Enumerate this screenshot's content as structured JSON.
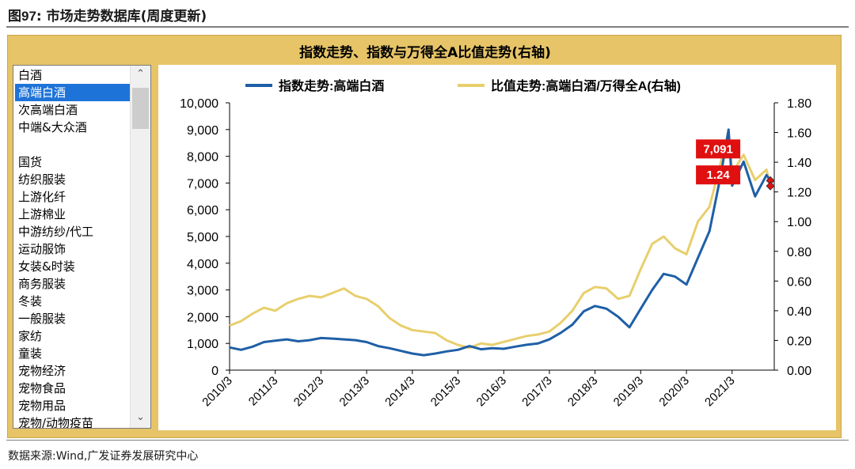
{
  "figure": {
    "title_prefix": "图",
    "title_number": "97",
    "title_text": ":  市场走势数据库(周度更新)",
    "source": "数据来源:Wind,广发证券发展研究中心"
  },
  "panel_title": "指数走势、指数与万得全A比值走势(右轴)",
  "listbox": {
    "items": [
      "白酒",
      "高端白酒",
      "次高端白酒",
      "中端&大众酒",
      "",
      "国货",
      "纺织服装",
      "上游化纤",
      "上游棉业",
      "中游纺纱/代工",
      "运动服饰",
      "女装&时装",
      "商务服装",
      "冬装",
      "一般服装",
      "家纺",
      "童装",
      "宠物经济",
      "宠物食品",
      "宠物用品",
      "宠物/动物疫苗"
    ],
    "selected_index": 1,
    "scroll_up": "⌃",
    "scroll_down": "⌄"
  },
  "colors": {
    "panel_bg": "#e6c467",
    "index_line": "#1f5fa6",
    "ratio_line": "#e8cf6d",
    "label_bg": "#e01010",
    "selected_bg": "#1e73d8"
  },
  "chart_data": {
    "type": "line",
    "x_ticks": [
      "2010/3",
      "2011/3",
      "2012/3",
      "2013/3",
      "2014/3",
      "2015/3",
      "2016/3",
      "2017/3",
      "2018/3",
      "2019/3",
      "2020/3",
      "2021/3"
    ],
    "y_left": {
      "min": 0,
      "max": 10000,
      "ticks": [
        "0",
        "1,000",
        "2,000",
        "3,000",
        "4,000",
        "5,000",
        "6,000",
        "7,000",
        "8,000",
        "9,000",
        "10,000"
      ]
    },
    "y_right": {
      "min": 0,
      "max": 1.8,
      "ticks": [
        "0.00",
        "0.20",
        "0.40",
        "0.60",
        "0.80",
        "1.00",
        "1.20",
        "1.40",
        "1.60",
        "1.80"
      ]
    },
    "legend_position": "top",
    "series": [
      {
        "name": "指数走势:高端白酒",
        "axis": "left",
        "points": [
          [
            "2010-03",
            850
          ],
          [
            "2010-06",
            760
          ],
          [
            "2010-09",
            880
          ],
          [
            "2010-12",
            1050
          ],
          [
            "2011-03",
            1100
          ],
          [
            "2011-06",
            1150
          ],
          [
            "2011-09",
            1080
          ],
          [
            "2011-12",
            1120
          ],
          [
            "2012-03",
            1200
          ],
          [
            "2012-06",
            1180
          ],
          [
            "2012-09",
            1150
          ],
          [
            "2012-12",
            1120
          ],
          [
            "2013-03",
            1050
          ],
          [
            "2013-06",
            900
          ],
          [
            "2013-09",
            820
          ],
          [
            "2013-12",
            720
          ],
          [
            "2014-03",
            620
          ],
          [
            "2014-06",
            560
          ],
          [
            "2014-09",
            620
          ],
          [
            "2014-12",
            700
          ],
          [
            "2015-03",
            760
          ],
          [
            "2015-06",
            900
          ],
          [
            "2015-09",
            780
          ],
          [
            "2015-12",
            820
          ],
          [
            "2016-03",
            800
          ],
          [
            "2016-06",
            880
          ],
          [
            "2016-09",
            950
          ],
          [
            "2016-12",
            1000
          ],
          [
            "2017-03",
            1150
          ],
          [
            "2017-06",
            1400
          ],
          [
            "2017-09",
            1700
          ],
          [
            "2017-12",
            2200
          ],
          [
            "2018-03",
            2400
          ],
          [
            "2018-06",
            2300
          ],
          [
            "2018-09",
            2000
          ],
          [
            "2018-12",
            1600
          ],
          [
            "2019-03",
            2300
          ],
          [
            "2019-06",
            3000
          ],
          [
            "2019-09",
            3600
          ],
          [
            "2019-12",
            3500
          ],
          [
            "2020-03",
            3200
          ],
          [
            "2020-06",
            4200
          ],
          [
            "2020-09",
            5200
          ],
          [
            "2020-12",
            7300
          ],
          [
            "2021-02",
            9000
          ],
          [
            "2021-03",
            6900
          ],
          [
            "2021-06",
            7800
          ],
          [
            "2021-09",
            6500
          ],
          [
            "2021-12",
            7300
          ],
          [
            "2022-01",
            7091
          ]
        ],
        "end_label": "7,091"
      },
      {
        "name": "比值走势:高端白酒/万得全A(右轴)",
        "axis": "right",
        "points": [
          [
            "2010-03",
            0.3
          ],
          [
            "2010-06",
            0.33
          ],
          [
            "2010-09",
            0.38
          ],
          [
            "2010-12",
            0.42
          ],
          [
            "2011-03",
            0.4
          ],
          [
            "2011-06",
            0.45
          ],
          [
            "2011-09",
            0.48
          ],
          [
            "2011-12",
            0.5
          ],
          [
            "2012-03",
            0.49
          ],
          [
            "2012-06",
            0.52
          ],
          [
            "2012-09",
            0.55
          ],
          [
            "2012-12",
            0.5
          ],
          [
            "2013-03",
            0.48
          ],
          [
            "2013-06",
            0.43
          ],
          [
            "2013-09",
            0.35
          ],
          [
            "2013-12",
            0.3
          ],
          [
            "2014-03",
            0.27
          ],
          [
            "2014-06",
            0.26
          ],
          [
            "2014-09",
            0.25
          ],
          [
            "2014-12",
            0.2
          ],
          [
            "2015-03",
            0.17
          ],
          [
            "2015-06",
            0.15
          ],
          [
            "2015-09",
            0.18
          ],
          [
            "2015-12",
            0.17
          ],
          [
            "2016-03",
            0.19
          ],
          [
            "2016-06",
            0.21
          ],
          [
            "2016-09",
            0.23
          ],
          [
            "2016-12",
            0.24
          ],
          [
            "2017-03",
            0.26
          ],
          [
            "2017-06",
            0.32
          ],
          [
            "2017-09",
            0.4
          ],
          [
            "2017-12",
            0.52
          ],
          [
            "2018-03",
            0.56
          ],
          [
            "2018-06",
            0.55
          ],
          [
            "2018-09",
            0.48
          ],
          [
            "2018-12",
            0.5
          ],
          [
            "2019-03",
            0.68
          ],
          [
            "2019-06",
            0.85
          ],
          [
            "2019-09",
            0.9
          ],
          [
            "2019-12",
            0.82
          ],
          [
            "2020-03",
            0.78
          ],
          [
            "2020-06",
            1.0
          ],
          [
            "2020-09",
            1.1
          ],
          [
            "2020-12",
            1.4
          ],
          [
            "2021-02",
            1.6
          ],
          [
            "2021-03",
            1.33
          ],
          [
            "2021-06",
            1.45
          ],
          [
            "2021-09",
            1.28
          ],
          [
            "2021-12",
            1.35
          ],
          [
            "2022-01",
            1.24
          ]
        ],
        "end_label": "1.24"
      }
    ]
  }
}
